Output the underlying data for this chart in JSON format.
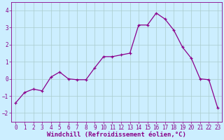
{
  "x": [
    0,
    1,
    2,
    3,
    4,
    5,
    6,
    7,
    8,
    9,
    10,
    11,
    12,
    13,
    14,
    15,
    16,
    17,
    18,
    19,
    20,
    21,
    22,
    23
  ],
  "y": [
    -1.4,
    -0.8,
    -0.6,
    -0.7,
    0.1,
    0.4,
    0.0,
    -0.05,
    -0.05,
    0.65,
    1.3,
    1.3,
    1.4,
    1.5,
    3.15,
    3.15,
    3.85,
    3.5,
    2.85,
    1.85,
    1.2,
    -0.0,
    -0.05,
    -1.7
  ],
  "line_color": "#8B008B",
  "marker": "+",
  "marker_color": "#8B008B",
  "bg_color": "#cceeff",
  "grid_color": "#aacccc",
  "xlabel": "Windchill (Refroidissement éolien,°C)",
  "xlim": [
    -0.5,
    23.5
  ],
  "ylim": [
    -2.5,
    4.5
  ],
  "yticks": [
    -2,
    -1,
    0,
    1,
    2,
    3,
    4
  ],
  "xticks": [
    0,
    1,
    2,
    3,
    4,
    5,
    6,
    7,
    8,
    9,
    10,
    11,
    12,
    13,
    14,
    15,
    16,
    17,
    18,
    19,
    20,
    21,
    22,
    23
  ],
  "font_color": "#880088",
  "tick_fontsize": 5.5,
  "xlabel_fontsize": 6.5,
  "linewidth": 0.9,
  "markersize": 3.5
}
